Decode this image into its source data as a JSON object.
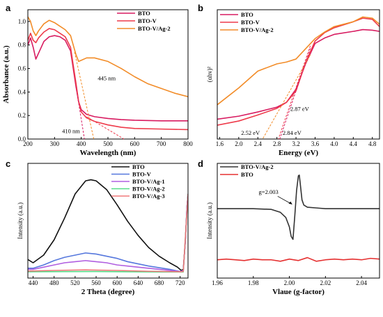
{
  "colors": {
    "axis": "#000000",
    "BTO": "#d81b60",
    "BTO-V": "#ee3a4a",
    "BTO-V/Ag-2": "#f28c28",
    "c_BTO": "#111111",
    "c_BTO-V": "#5577dd",
    "c_BTO-V/Ag-1": "#b05ee0",
    "c_BTO-V/Ag-2": "#55dd88",
    "c_BTO-V/Ag-3": "#f0787a",
    "d_BTOVAg2": "#333333",
    "d_BTO": "#e53030"
  },
  "chart_data": [
    {
      "panel": "a",
      "type": "line",
      "xlabel": "Wavelength (nm)",
      "ylabel": "Absorbance (a.u.)",
      "xlim": [
        200,
        800
      ],
      "ylim": [
        0.0,
        1.1
      ],
      "xticks": [
        "200",
        "300",
        "400",
        "500",
        "600",
        "700",
        "800"
      ],
      "yticks": [
        "0.0",
        "0.2",
        "0.4",
        "0.6",
        "0.8",
        "1.0"
      ],
      "legend_position": "top-right",
      "series": [
        {
          "name": "BTO",
          "x": [
            200,
            210,
            220,
            230,
            240,
            260,
            280,
            300,
            320,
            340,
            360,
            380,
            390,
            400,
            420,
            450,
            500,
            550,
            600,
            700,
            800
          ],
          "y": [
            0.8,
            0.86,
            0.78,
            0.68,
            0.73,
            0.83,
            0.87,
            0.88,
            0.87,
            0.84,
            0.75,
            0.45,
            0.32,
            0.25,
            0.21,
            0.19,
            0.175,
            0.165,
            0.16,
            0.155,
            0.155
          ]
        },
        {
          "name": "BTO-V",
          "x": [
            200,
            210,
            220,
            230,
            240,
            260,
            280,
            300,
            320,
            340,
            360,
            380,
            390,
            400,
            420,
            450,
            500,
            550,
            600,
            700,
            800
          ],
          "y": [
            0.84,
            0.9,
            0.84,
            0.82,
            0.86,
            0.91,
            0.94,
            0.93,
            0.9,
            0.87,
            0.78,
            0.48,
            0.32,
            0.23,
            0.18,
            0.15,
            0.12,
            0.1,
            0.09,
            0.085,
            0.08
          ]
        },
        {
          "name": "BTO-V/Ag-2",
          "x": [
            200,
            210,
            220,
            230,
            240,
            260,
            280,
            300,
            320,
            340,
            360,
            380,
            390,
            400,
            420,
            450,
            500,
            550,
            600,
            650,
            700,
            750,
            800
          ],
          "y": [
            1.04,
            1.0,
            0.92,
            0.88,
            0.92,
            0.98,
            1.01,
            0.99,
            0.96,
            0.93,
            0.88,
            0.72,
            0.66,
            0.67,
            0.69,
            0.69,
            0.66,
            0.6,
            0.53,
            0.47,
            0.43,
            0.39,
            0.36
          ]
        }
      ],
      "annotations": [
        "445 nm",
        "410 nm"
      ]
    },
    {
      "panel": "b",
      "type": "line",
      "xlabel": "Energy (eV)",
      "ylabel": "(αhv)²",
      "xlim": [
        1.55,
        4.95
      ],
      "xticks": [
        "1.6",
        "2.0",
        "2.4",
        "2.8",
        "3.2",
        "3.6",
        "4.0",
        "4.4",
        "4.8"
      ],
      "legend_position": "top-left",
      "series": [
        {
          "name": "BTO",
          "x": [
            1.55,
            2.0,
            2.4,
            2.8,
            3.0,
            3.2,
            3.4,
            3.6,
            3.8,
            4.0,
            4.4,
            4.6,
            4.8,
            4.95
          ],
          "y": [
            0.48,
            0.53,
            0.6,
            0.68,
            0.76,
            0.98,
            1.4,
            1.74,
            1.83,
            1.89,
            1.94,
            1.97,
            1.96,
            1.94
          ]
        },
        {
          "name": "BTO-V",
          "x": [
            1.55,
            2.0,
            2.4,
            2.8,
            3.0,
            3.2,
            3.4,
            3.6,
            3.8,
            4.0,
            4.4,
            4.6,
            4.8,
            4.95
          ],
          "y": [
            0.38,
            0.45,
            0.55,
            0.66,
            0.76,
            0.95,
            1.42,
            1.78,
            1.92,
            2.0,
            2.1,
            2.16,
            2.14,
            2.02
          ]
        },
        {
          "name": "BTO-V/Ag-2",
          "x": [
            1.55,
            2.0,
            2.4,
            2.8,
            3.0,
            3.2,
            3.4,
            3.6,
            3.8,
            4.0,
            4.4,
            4.6,
            4.8,
            4.95
          ],
          "y": [
            0.72,
            1.0,
            1.28,
            1.4,
            1.43,
            1.48,
            1.65,
            1.82,
            1.93,
            2.02,
            2.1,
            2.18,
            2.16,
            2.06
          ]
        }
      ],
      "annotations": [
        "2.87 eV",
        "2.84 eV",
        "2.52 eV"
      ]
    },
    {
      "panel": "c",
      "type": "line",
      "xlabel": "2 Theta (degree)",
      "ylabel": "Intensity (a.u.)",
      "xlim": [
        430,
        735
      ],
      "xticks": [
        "440",
        "480",
        "520",
        "560",
        "600",
        "640",
        "680",
        "720"
      ],
      "legend_position": "top-right",
      "series": [
        {
          "name": "BTO",
          "x": [
            430,
            440,
            460,
            480,
            500,
            520,
            540,
            550,
            560,
            580,
            600,
            620,
            640,
            660,
            680,
            700,
            715,
            722,
            726,
            730,
            733,
            735
          ],
          "y": [
            0.12,
            0.09,
            0.16,
            0.3,
            0.5,
            0.72,
            0.84,
            0.85,
            0.84,
            0.76,
            0.62,
            0.47,
            0.34,
            0.23,
            0.15,
            0.09,
            0.05,
            0.02,
            0.03,
            0.3,
            0.6,
            0.72
          ]
        },
        {
          "name": "BTO-V",
          "x": [
            430,
            440,
            460,
            480,
            500,
            520,
            540,
            560,
            580,
            600,
            620,
            660,
            700,
            720,
            726,
            730,
            733,
            735
          ],
          "y": [
            0.04,
            0.04,
            0.07,
            0.11,
            0.14,
            0.16,
            0.18,
            0.17,
            0.15,
            0.13,
            0.1,
            0.06,
            0.03,
            0.01,
            0.02,
            0.3,
            0.6,
            0.72
          ]
        },
        {
          "name": "BTO-V/Ag-1",
          "x": [
            430,
            440,
            460,
            480,
            500,
            520,
            540,
            560,
            580,
            600,
            640,
            680,
            720,
            726,
            730,
            733,
            735
          ],
          "y": [
            0.03,
            0.03,
            0.05,
            0.07,
            0.09,
            0.1,
            0.11,
            0.1,
            0.09,
            0.07,
            0.05,
            0.03,
            0.01,
            0.02,
            0.3,
            0.6,
            0.72
          ]
        },
        {
          "name": "BTO-V/Ag-2",
          "x": [
            430,
            500,
            560,
            620,
            680,
            726,
            735
          ],
          "y": [
            0.008,
            0.009,
            0.01,
            0.008,
            0.006,
            0.006,
            0.72
          ]
        },
        {
          "name": "BTO-V/Ag-3",
          "x": [
            430,
            480,
            540,
            600,
            660,
            720,
            726,
            735
          ],
          "y": [
            0.014,
            0.02,
            0.025,
            0.02,
            0.012,
            0.008,
            0.01,
            0.72
          ]
        }
      ]
    },
    {
      "panel": "d",
      "type": "line",
      "xlabel": "Vlaue (g-factor)",
      "ylabel": "Intensity (a.u.)",
      "xlim": [
        1.96,
        2.05
      ],
      "xticks": [
        "1.96",
        "1.98",
        "2.00",
        "2.02",
        "2.04"
      ],
      "legend_position": "top-left",
      "series": [
        {
          "name": "BTO-V/Ag-2",
          "x": [
            1.96,
            1.98,
            1.99,
            1.995,
            1.998,
            2.0,
            2.001,
            2.002,
            2.003,
            2.004,
            2.005,
            2.0055,
            2.006,
            2.007,
            2.008,
            2.01,
            2.015,
            2.02,
            2.03,
            2.04,
            2.05
          ],
          "y": [
            0.0,
            0.0,
            -0.01,
            -0.05,
            -0.12,
            -0.25,
            -0.38,
            -0.42,
            -0.1,
            0.25,
            0.45,
            0.46,
            0.35,
            0.12,
            0.05,
            0.02,
            0.01,
            0.0,
            0.0,
            0.0,
            0.0
          ]
        },
        {
          "name": "BTO",
          "x": [
            1.96,
            1.965,
            1.97,
            1.975,
            1.98,
            1.985,
            1.99,
            1.995,
            2.0,
            2.005,
            2.01,
            2.015,
            2.02,
            2.025,
            2.03,
            2.035,
            2.04,
            2.045,
            2.05
          ],
          "y": [
            -0.7,
            -0.69,
            -0.7,
            -0.71,
            -0.69,
            -0.7,
            -0.7,
            -0.72,
            -0.69,
            -0.71,
            -0.67,
            -0.72,
            -0.7,
            -0.69,
            -0.7,
            -0.69,
            -0.7,
            -0.68,
            -0.69
          ]
        }
      ],
      "annotations": [
        "g=2.003"
      ]
    }
  ],
  "panels": {
    "a": {
      "letter": "a"
    },
    "b": {
      "letter": "b"
    },
    "c": {
      "letter": "c"
    },
    "d": {
      "letter": "d"
    }
  }
}
